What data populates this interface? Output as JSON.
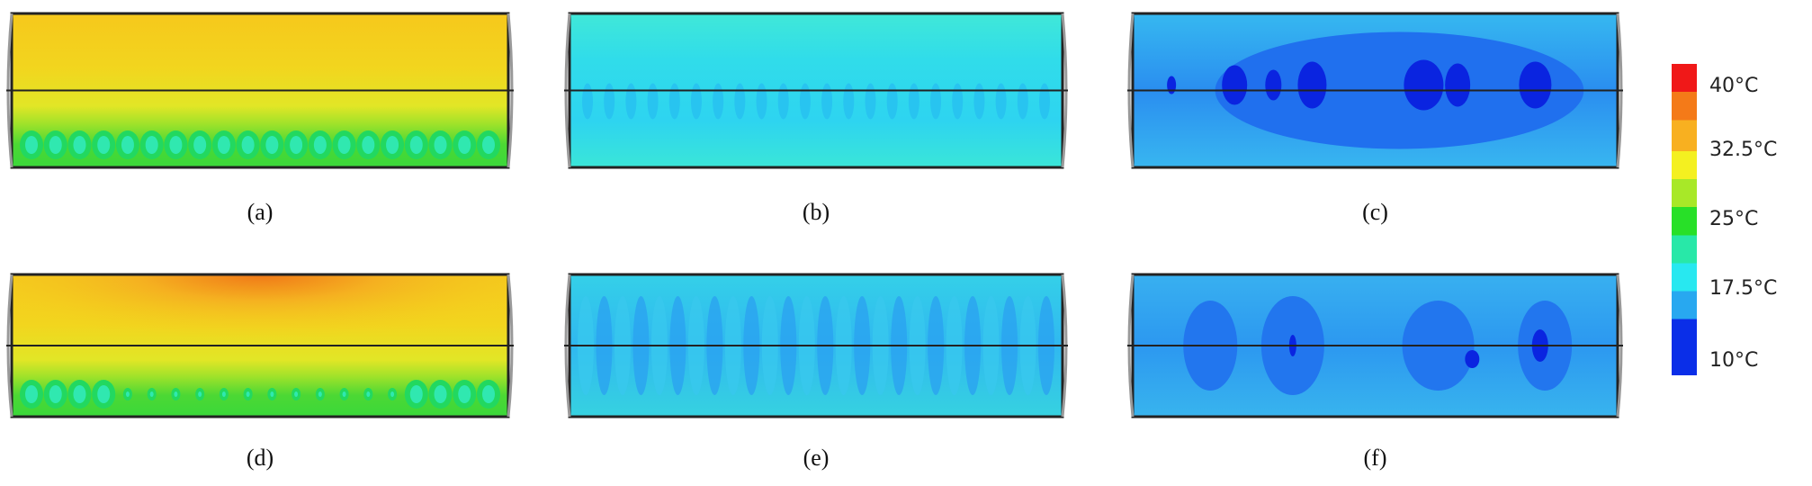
{
  "panels": [
    {
      "label": "(a)"
    },
    {
      "label": "(b)"
    },
    {
      "label": "(c)"
    },
    {
      "label": "(d)"
    },
    {
      "label": "(e)"
    },
    {
      "label": "(f)"
    }
  ],
  "colorbar": {
    "labels": [
      "40°C",
      "32.5°C",
      "25°C",
      "17.5°C",
      "10°C"
    ]
  }
}
